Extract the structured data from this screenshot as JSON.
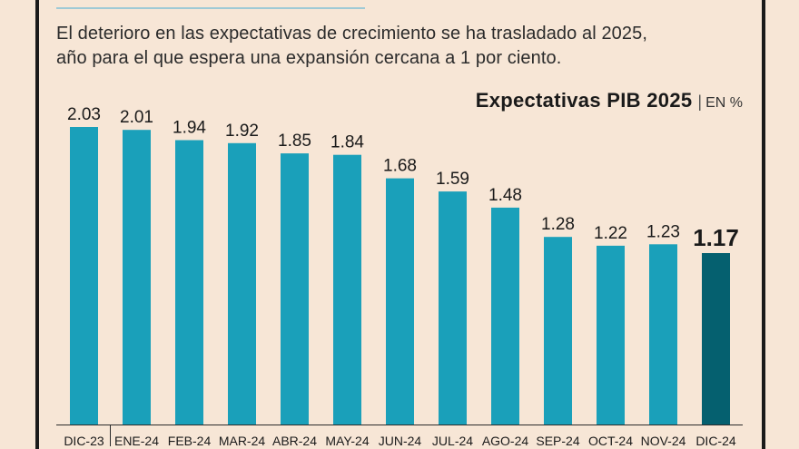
{
  "subtitle_line1": "El deterioro en las expectativas de crecimiento se ha trasladado al 2025,",
  "subtitle_line2": "año para el que espera una expansión cercana a 1 por ciento.",
  "colors": {
    "background": "#f7e6d6",
    "bar": "#1aa0ba",
    "bar_highlight": "#05606f",
    "text": "#1a1a1a"
  },
  "chart_data": {
    "type": "bar",
    "title": "Expectativas PIB 2025",
    "unit": "EN %",
    "categories": [
      "DIC-23",
      "ENE-24",
      "FEB-24",
      "MAR-24",
      "ABR-24",
      "MAY-24",
      "JUN-24",
      "JUL-24",
      "AGO-24",
      "SEP-24",
      "OCT-24",
      "NOV-24",
      "DIC-24"
    ],
    "values": [
      2.03,
      2.01,
      1.94,
      1.92,
      1.85,
      1.84,
      1.68,
      1.59,
      1.48,
      1.28,
      1.22,
      1.23,
      1.17
    ],
    "data_labels": [
      "2.03",
      "2.01",
      "1.94",
      "1.92",
      "1.85",
      "1.84",
      "1.68",
      "1.59",
      "1.48",
      "1.28",
      "1.22",
      "1.23",
      "1.17"
    ],
    "highlight_index": 12,
    "ylim": [
      0,
      2.1
    ],
    "grid": false,
    "legend": "none"
  }
}
